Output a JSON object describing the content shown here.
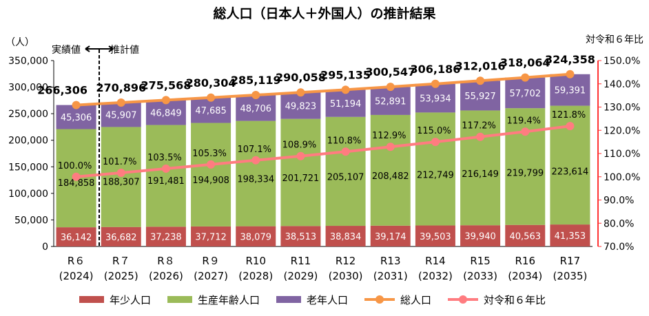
{
  "chart_data": {
    "type": "bar",
    "stacked": true,
    "title": "総人口（日本人＋外国人）の推計結果",
    "ylabel": "（人）",
    "y2label": "対令和６年比",
    "ylim": [
      0,
      350000
    ],
    "y2lim": [
      70,
      150
    ],
    "yticks": [
      "0",
      "50,000",
      "100,000",
      "150,000",
      "200,000",
      "250,000",
      "300,000",
      "350,000"
    ],
    "y2ticks": [
      "70.0%",
      "80.0%",
      "90.0%",
      "100.0%",
      "110.0%",
      "120.0%",
      "130.0%",
      "140.0%",
      "150.0%"
    ],
    "categories": [
      "R６",
      "R７",
      "R８",
      "R９",
      "R10",
      "R11",
      "R12",
      "R13",
      "R14",
      "R15",
      "R16",
      "R17"
    ],
    "category_years": [
      "(2024)",
      "(2025)",
      "(2026)",
      "(2027)",
      "(2028)",
      "(2029)",
      "(2030)",
      "(2031)",
      "(2032)",
      "(2033)",
      "(2034)",
      "(2035)"
    ],
    "series": [
      {
        "name": "年少人口",
        "kind": "bar",
        "color": "#c0504d",
        "values": [
          36142,
          36682,
          37238,
          37712,
          38079,
          38513,
          38834,
          39174,
          39503,
          39940,
          40563,
          41353
        ],
        "labels": [
          "36,142",
          "36,682",
          "37,238",
          "37,712",
          "38,079",
          "38,513",
          "38,834",
          "39,174",
          "39,503",
          "39,940",
          "40,563",
          "41,353"
        ]
      },
      {
        "name": "生産年齢人口",
        "kind": "bar",
        "color": "#9bbb59",
        "values": [
          184858,
          188307,
          191481,
          194908,
          198334,
          201721,
          205107,
          208482,
          212749,
          216149,
          219799,
          223614
        ],
        "labels": [
          "184,858",
          "188,307",
          "191,481",
          "194,908",
          "198,334",
          "201,721",
          "205,107",
          "208,482",
          "212,749",
          "216,149",
          "219,799",
          "223,614"
        ]
      },
      {
        "name": "老年人口",
        "kind": "bar",
        "color": "#8064a2",
        "values": [
          45306,
          45907,
          46849,
          47685,
          48706,
          49823,
          51194,
          52891,
          53934,
          55927,
          57702,
          59391
        ],
        "labels": [
          "45,306",
          "45,907",
          "46,849",
          "47,685",
          "48,706",
          "49,823",
          "51,194",
          "52,891",
          "53,934",
          "55,927",
          "57,702",
          "59,391"
        ]
      },
      {
        "name": "総人口",
        "kind": "line",
        "color": "#f79646",
        "values": [
          266306,
          270896,
          275568,
          280304,
          285119,
          290058,
          295135,
          300547,
          306186,
          312016,
          318064,
          324358
        ],
        "labels": [
          "266,306",
          "270,896",
          "275,568",
          "280,304",
          "285,119",
          "290,058",
          "295,135",
          "300,547",
          "306,186",
          "312,016",
          "318,064",
          "324,358"
        ]
      },
      {
        "name": "対令和６年比",
        "kind": "line",
        "axis": "right",
        "color": "#ff7c80",
        "values": [
          100.0,
          101.7,
          103.5,
          105.3,
          107.1,
          108.9,
          110.8,
          112.9,
          115.0,
          117.2,
          119.4,
          121.8
        ],
        "labels": [
          "100.0%",
          "101.7%",
          "103.5%",
          "105.3%",
          "107.1%",
          "108.9%",
          "110.8%",
          "112.9%",
          "115.0%",
          "117.2%",
          "119.4%",
          "121.8%"
        ]
      }
    ],
    "annotations": {
      "actual": "実績値",
      "estimate": "推計値"
    },
    "legend_position": "bottom"
  }
}
